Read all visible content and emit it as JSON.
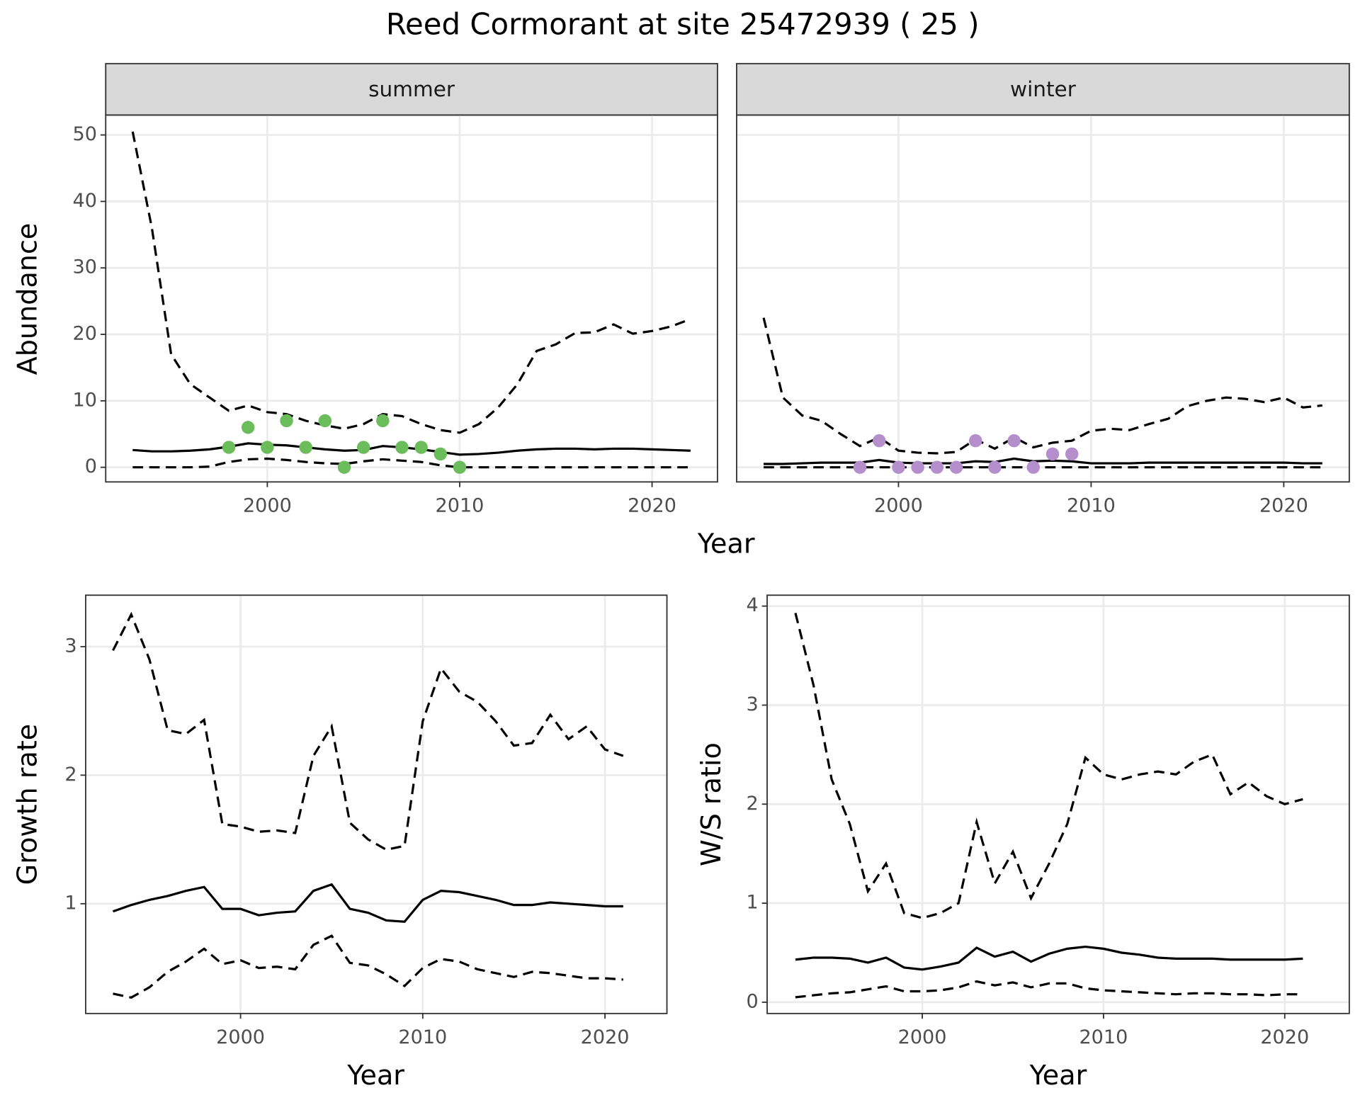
{
  "title": "Reed Cormorant at site 25472939 ( 25 )",
  "chart_data": [
    {
      "type": "line",
      "facet": "summer",
      "ylabel": "Abundance",
      "xlabel": "Year",
      "grid": true,
      "xlim": [
        1991.6,
        2023.4
      ],
      "xticks": [
        2000,
        2010,
        2020
      ],
      "ylim": [
        -2.2,
        53
      ],
      "yticks": [
        0,
        10,
        20,
        30,
        40,
        50
      ],
      "x": [
        1993,
        1994,
        1995,
        1996,
        1997,
        1998,
        1999,
        2000,
        2001,
        2002,
        2003,
        2004,
        2005,
        2006,
        2007,
        2008,
        2009,
        2010,
        2011,
        2012,
        2013,
        2014,
        2015,
        2016,
        2017,
        2018,
        2019,
        2020,
        2021,
        2022
      ],
      "series": [
        {
          "linestyle": "dashed",
          "color": "#000000",
          "values": [
            50.5,
            36,
            17,
            12.5,
            10.5,
            8.5,
            9.3,
            8.3,
            8,
            7,
            6.3,
            5.8,
            6.5,
            8,
            7.7,
            6.5,
            5.6,
            5.2,
            6.5,
            9,
            12.5,
            17.5,
            18.5,
            20.2,
            20.3,
            21.5,
            20.1,
            20.5,
            21.2,
            22.3
          ]
        },
        {
          "linestyle": "solid",
          "color": "#000000",
          "values": [
            2.6,
            2.4,
            2.4,
            2.5,
            2.7,
            3.1,
            3.6,
            3.4,
            3.3,
            3.0,
            2.7,
            2.5,
            2.6,
            3.2,
            3.0,
            2.7,
            2.3,
            1.9,
            2.0,
            2.2,
            2.5,
            2.7,
            2.8,
            2.8,
            2.7,
            2.8,
            2.8,
            2.7,
            2.6,
            2.5
          ]
        },
        {
          "linestyle": "dashed",
          "color": "#000000",
          "values": [
            0,
            0,
            0,
            0,
            0.1,
            0.8,
            1.2,
            1.3,
            1.1,
            0.8,
            0.6,
            0.5,
            0.9,
            1.2,
            1.0,
            0.8,
            0.3,
            0,
            0,
            0,
            0,
            0,
            0,
            0,
            0,
            0,
            0,
            0,
            0,
            0
          ]
        },
        {
          "type": "scatter",
          "color": "#6bbd5b",
          "x": [
            1998,
            1999,
            2000,
            2001,
            2002,
            2003,
            2004,
            2005,
            2006,
            2007,
            2008,
            2009,
            2010
          ],
          "values": [
            3,
            6,
            3,
            7,
            3,
            7,
            0,
            3,
            7,
            3,
            3,
            2,
            0
          ]
        }
      ]
    },
    {
      "type": "line",
      "facet": "winter",
      "grid": true,
      "xlim": [
        1991.6,
        2023.4
      ],
      "xticks": [
        2000,
        2010,
        2020
      ],
      "ylim": [
        -2.2,
        53
      ],
      "yticks": [
        0,
        10,
        20,
        30,
        40,
        50
      ],
      "x": [
        1993,
        1994,
        1995,
        1996,
        1997,
        1998,
        1999,
        2000,
        2001,
        2002,
        2003,
        2004,
        2005,
        2006,
        2007,
        2008,
        2009,
        2010,
        2011,
        2012,
        2013,
        2014,
        2015,
        2016,
        2017,
        2018,
        2019,
        2020,
        2021,
        2022
      ],
      "series": [
        {
          "linestyle": "dashed",
          "color": "#000000",
          "values": [
            22.5,
            10.5,
            7.8,
            7,
            5,
            3.2,
            4.5,
            2.5,
            2.2,
            2.1,
            2.3,
            4.2,
            2.8,
            4.5,
            3.0,
            3.7,
            4.0,
            5.5,
            5.8,
            5.6,
            6.5,
            7.3,
            9.2,
            10,
            10.5,
            10.3,
            9.8,
            10.5,
            9.0,
            9.3
          ]
        },
        {
          "linestyle": "solid",
          "color": "#000000",
          "values": [
            0.5,
            0.5,
            0.6,
            0.7,
            0.7,
            0.7,
            1.1,
            0.7,
            0.6,
            0.6,
            0.6,
            0.9,
            0.8,
            1.3,
            0.9,
            1.0,
            0.9,
            0.6,
            0.6,
            0.6,
            0.7,
            0.7,
            0.7,
            0.7,
            0.7,
            0.7,
            0.7,
            0.7,
            0.6,
            0.6
          ]
        },
        {
          "linestyle": "dashed",
          "color": "#000000",
          "values": [
            0,
            0,
            0,
            0,
            0,
            0,
            0,
            0,
            0,
            0,
            0,
            0,
            0,
            0,
            0,
            0,
            0,
            0,
            0,
            0,
            0,
            0,
            0,
            0,
            0,
            0,
            0,
            0,
            0,
            0
          ]
        },
        {
          "type": "scatter",
          "color": "#b48fcc",
          "x": [
            1998,
            1999,
            2000,
            2001,
            2002,
            2003,
            2004,
            2005,
            2006,
            2007,
            2008,
            2009
          ],
          "values": [
            0,
            4,
            0,
            0,
            0,
            0,
            4,
            0,
            4,
            0,
            2,
            2
          ]
        }
      ]
    },
    {
      "type": "line",
      "ylabel": "Growth rate",
      "xlabel": "Year",
      "grid": true,
      "xlim": [
        1991.5,
        2023.4
      ],
      "xticks": [
        2000,
        2010,
        2020
      ],
      "ylim": [
        0.146,
        3.4
      ],
      "yticks": [
        1,
        2,
        3
      ],
      "x": [
        1993,
        1994,
        1995,
        1996,
        1997,
        1998,
        1999,
        2000,
        2001,
        2002,
        2003,
        2004,
        2005,
        2006,
        2007,
        2008,
        2009,
        2010,
        2011,
        2012,
        2013,
        2014,
        2015,
        2016,
        2017,
        2018,
        2019,
        2020,
        2021
      ],
      "series": [
        {
          "linestyle": "dashed",
          "color": "#000000",
          "values": [
            2.97,
            3.25,
            2.9,
            2.35,
            2.32,
            2.43,
            1.62,
            1.6,
            1.56,
            1.57,
            1.55,
            2.15,
            2.38,
            1.63,
            1.5,
            1.42,
            1.45,
            2.42,
            2.83,
            2.65,
            2.57,
            2.42,
            2.23,
            2.25,
            2.47,
            2.28,
            2.38,
            2.2,
            2.15
          ]
        },
        {
          "linestyle": "solid",
          "color": "#000000",
          "values": [
            0.94,
            0.99,
            1.03,
            1.06,
            1.1,
            1.13,
            0.96,
            0.96,
            0.91,
            0.93,
            0.94,
            1.1,
            1.15,
            0.96,
            0.93,
            0.87,
            0.86,
            1.03,
            1.1,
            1.09,
            1.06,
            1.03,
            0.99,
            0.99,
            1.01,
            1.0,
            0.99,
            0.98,
            0.98
          ]
        },
        {
          "linestyle": "dashed",
          "color": "#000000",
          "values": [
            0.3,
            0.27,
            0.35,
            0.47,
            0.55,
            0.65,
            0.53,
            0.56,
            0.5,
            0.51,
            0.49,
            0.68,
            0.75,
            0.54,
            0.52,
            0.45,
            0.36,
            0.5,
            0.57,
            0.55,
            0.49,
            0.46,
            0.43,
            0.47,
            0.46,
            0.44,
            0.42,
            0.42,
            0.41
          ]
        }
      ]
    },
    {
      "type": "line",
      "ylabel": "W/S ratio",
      "xlabel": "Year",
      "grid": true,
      "xlim": [
        1991.44,
        2023.56
      ],
      "xticks": [
        2000,
        2010,
        2020
      ],
      "ylim": [
        -0.114,
        4.11
      ],
      "yticks": [
        0,
        1,
        2,
        3,
        4
      ],
      "x": [
        1993,
        1994,
        1995,
        1996,
        1997,
        1998,
        1999,
        2000,
        2001,
        2002,
        2003,
        2004,
        2005,
        2006,
        2007,
        2008,
        2009,
        2010,
        2011,
        2012,
        2013,
        2014,
        2015,
        2016,
        2017,
        2018,
        2019,
        2020,
        2021
      ],
      "series": [
        {
          "linestyle": "dashed",
          "color": "#000000",
          "values": [
            3.93,
            3.2,
            2.25,
            1.8,
            1.12,
            1.4,
            0.9,
            0.85,
            0.9,
            1.0,
            1.82,
            1.2,
            1.52,
            1.05,
            1.4,
            1.8,
            2.47,
            2.3,
            2.25,
            2.3,
            2.33,
            2.3,
            2.43,
            2.5,
            2.1,
            2.22,
            2.08,
            2.0,
            2.05
          ]
        },
        {
          "linestyle": "solid",
          "color": "#000000",
          "values": [
            0.43,
            0.45,
            0.45,
            0.44,
            0.4,
            0.45,
            0.35,
            0.33,
            0.36,
            0.4,
            0.55,
            0.46,
            0.51,
            0.41,
            0.49,
            0.54,
            0.56,
            0.54,
            0.5,
            0.48,
            0.45,
            0.44,
            0.44,
            0.44,
            0.43,
            0.43,
            0.43,
            0.43,
            0.44
          ]
        },
        {
          "linestyle": "dashed",
          "color": "#000000",
          "values": [
            0.05,
            0.07,
            0.09,
            0.1,
            0.13,
            0.16,
            0.11,
            0.11,
            0.12,
            0.15,
            0.21,
            0.17,
            0.2,
            0.15,
            0.19,
            0.19,
            0.14,
            0.12,
            0.11,
            0.1,
            0.09,
            0.08,
            0.09,
            0.09,
            0.08,
            0.08,
            0.07,
            0.08,
            0.08
          ]
        }
      ]
    }
  ]
}
